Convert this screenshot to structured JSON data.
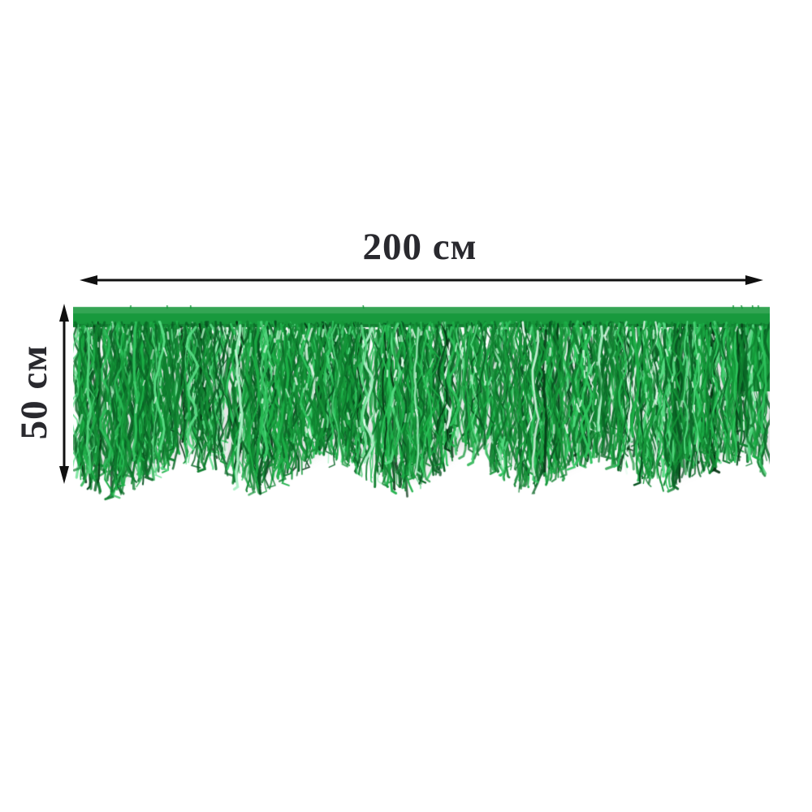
{
  "image": {
    "background": "#ffffff"
  },
  "garland": {
    "band_color": "#18993d",
    "tinsel_colors": [
      "#043312",
      "#075220",
      "#0a6626",
      "#0f7f2f",
      "#159639",
      "#1caf47",
      "#2fc45e",
      "#58dc84",
      "#aaf0c4",
      "#ecfcf2"
    ],
    "sparkle_colors": [
      "#c2f4d2",
      "#eefff4",
      "#57dd85"
    ],
    "shadow_color": "rgba(130,130,130,0.20)"
  },
  "dimensions": {
    "width_label": "200 см",
    "height_label": "50 см",
    "arrow_color": "#101010",
    "label_color": "#29292e"
  }
}
